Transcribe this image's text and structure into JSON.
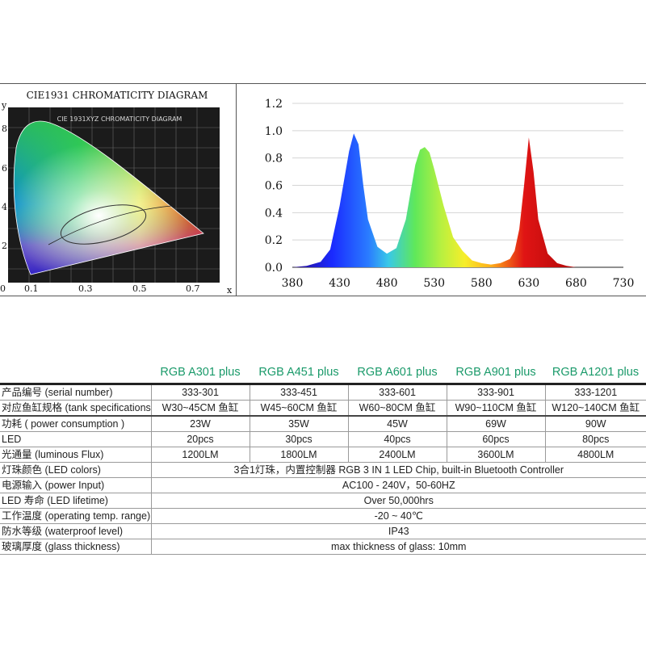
{
  "cie": {
    "title": "CIE1931 CHROMATICITY DIAGRAM",
    "inner_title": "CIE 1931XYZ CHROMATICITY DIAGRAM",
    "axis_x": "x",
    "axis_y": "y",
    "x_ticks": [
      "0",
      "0.1",
      "0.3",
      "0.5",
      "0.7"
    ],
    "y_ticks": [
      "8",
      "6",
      "4",
      "2"
    ]
  },
  "chart_data": {
    "type": "line",
    "title": "",
    "xlabel": "",
    "ylabel": "",
    "xlim": [
      380,
      730
    ],
    "ylim": [
      0,
      1.2
    ],
    "x_ticks": [
      380,
      430,
      480,
      530,
      580,
      630,
      680,
      730
    ],
    "y_ticks": [
      0.0,
      0.2,
      0.4,
      0.6,
      0.8,
      1.0,
      1.2
    ],
    "x_tick_labels": [
      "380",
      "430",
      "480",
      "530",
      "580",
      "630",
      "680",
      "730"
    ],
    "y_tick_labels": [
      "0.0",
      "0.2",
      "0.4",
      "0.6",
      "0.8",
      "1.0",
      "1.2"
    ],
    "grid": "horizontal",
    "series": [
      {
        "x": [
          380,
          395,
          410,
          420,
          430,
          440,
          445,
          450,
          455,
          460,
          470,
          480,
          490,
          500,
          505,
          510,
          515,
          520,
          525,
          530,
          540,
          550,
          560,
          570,
          580,
          590,
          600,
          610,
          615,
          620,
          625,
          630,
          635,
          640,
          650,
          660,
          670,
          680,
          690,
          700,
          730
        ],
        "y": [
          0.0,
          0.01,
          0.04,
          0.13,
          0.45,
          0.85,
          0.98,
          0.9,
          0.6,
          0.35,
          0.15,
          0.1,
          0.14,
          0.35,
          0.55,
          0.75,
          0.86,
          0.88,
          0.84,
          0.72,
          0.45,
          0.22,
          0.12,
          0.05,
          0.03,
          0.02,
          0.03,
          0.06,
          0.12,
          0.28,
          0.6,
          0.95,
          0.7,
          0.35,
          0.1,
          0.03,
          0.01,
          0.0,
          0.0,
          0.0,
          0.0
        ]
      }
    ]
  },
  "table": {
    "models": [
      "RGB A301 plus",
      "RGB A451 plus",
      "RGB A601 plus",
      "RGB A901 plus",
      "RGB A1201 plus"
    ],
    "rows": [
      {
        "label": "产品编号 (serial number)",
        "values": [
          "333-301",
          "333-451",
          "333-601",
          "333-901",
          "333-1201"
        ]
      },
      {
        "label": "对应鱼缸规格 (tank specifications)",
        "values": [
          "W30~45CM 鱼缸",
          "W45~60CM 鱼缸",
          "W60~80CM 鱼缸",
          "W90~110CM 鱼缸",
          "W120~140CM 鱼缸"
        ]
      },
      {
        "label": "功耗 ( power consumption )",
        "values": [
          "23W",
          "35W",
          "45W",
          "69W",
          "90W"
        ]
      },
      {
        "label": "LED",
        "values": [
          "20pcs",
          "30pcs",
          "40pcs",
          "60pcs",
          "80pcs"
        ]
      },
      {
        "label": "光通量 (luminous Flux)",
        "values": [
          "1200LM",
          "1800LM",
          "2400LM",
          "3600LM",
          "4800LM"
        ]
      },
      {
        "label": "灯珠颜色 (LED colors)",
        "span": "3合1灯珠，内置控制器  RGB 3 IN 1 LED Chip, built-in Bluetooth Controller"
      },
      {
        "label": "电源输入 (power Input)",
        "span": "AC100 - 240V，50-60HZ"
      },
      {
        "label": "LED 寿命 (LED lifetime)",
        "span": "Over 50,000hrs"
      },
      {
        "label": "工作温度 (operating temp. range)",
        "span": "-20 ~ 40℃"
      },
      {
        "label": "防水等级 (waterproof level)",
        "span": "IP43"
      },
      {
        "label": "玻璃厚度 (glass thickness)",
        "span": "max thickness of glass: 10mm"
      }
    ]
  },
  "colors": {
    "model_header": "#1a9a6a",
    "blue_peak": "#1a2aff",
    "green_peak": "#5fe85a",
    "red_peak": "#e01414"
  }
}
